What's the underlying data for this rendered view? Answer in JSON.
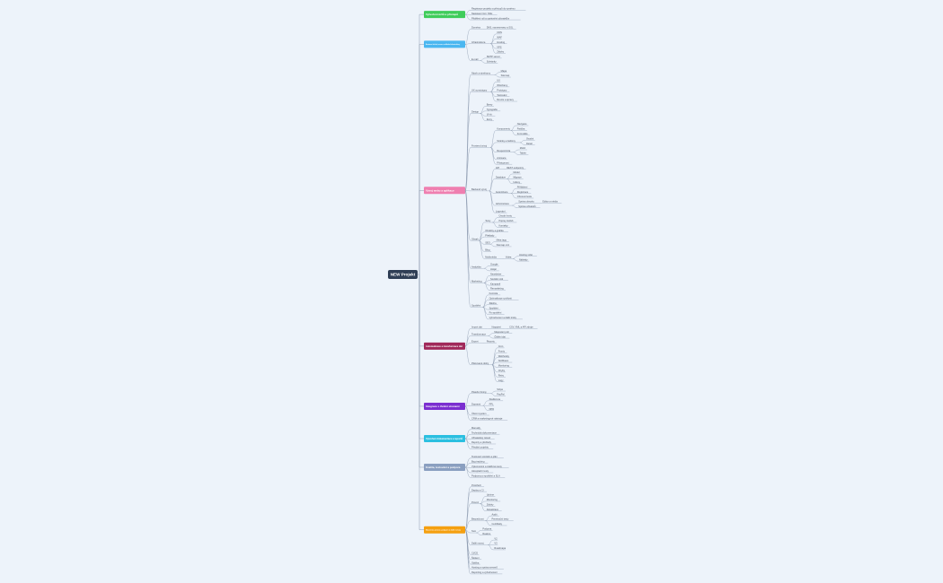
{
  "root": "NEW Projekt",
  "branches": [
    {
      "label": "Vytvoření účtů a přístupů",
      "color": "#3fcc5a",
      "children": [
        {
          "label": "Registrace projektu a přístupů do systému"
        },
        {
          "label": "Nastavení Git / SSH"
        },
        {
          "label": "Přidělení rolí a oprávnění uživatelům"
        }
      ]
    },
    {
      "label": "Nastavení služeb, serverů a základní infrastruktury",
      "color": "#4bb7f0",
      "children": [
        {
          "label": "Doména",
          "children": [
            {
              "label": "DNS, nameservery a SSL"
            }
          ]
        },
        {
          "label": "Infrastruktura",
          "children": [
            {
              "label": "CDN"
            },
            {
              "label": "WAF"
            },
            {
              "label": "Hosting"
            },
            {
              "label": "VPS"
            },
            {
              "label": "Zálohy"
            }
          ]
        },
        {
          "label": "E-mail",
          "children": [
            {
              "label": "SMTP server"
            },
            {
              "label": "Schránky"
            }
          ]
        }
      ]
    },
    {
      "label": "Vývoj webu a aplikace",
      "color": "#ef7fb0",
      "children": [
        {
          "label": "Návrh a wireframy",
          "children": [
            {
              "label": "Mapa"
            },
            {
              "label": "Sitemap"
            }
          ]
        },
        {
          "label": "UX a prototypy",
          "children": [
            {
              "label": "UX"
            },
            {
              "label": "Wireframy"
            },
            {
              "label": "Prototypy"
            },
            {
              "label": "Testování"
            },
            {
              "label": "Revize a úpravy"
            }
          ]
        },
        {
          "label": "Design",
          "children": [
            {
              "label": "Barvy"
            },
            {
              "label": "Typografie"
            },
            {
              "label": "UI kit"
            },
            {
              "label": "Ikony"
            }
          ]
        },
        {
          "label": "Frontend vývoj",
          "children": [
            {
              "label": "Komponenty",
              "children": [
                {
                  "label": "Navigace"
                },
                {
                  "label": "Patička"
                },
                {
                  "label": "Formuláře"
                }
              ]
            },
            {
              "label": "Stránky a šablony",
              "children": [
                {
                  "label": "Úvodní"
                },
                {
                  "label": "Detail"
                }
              ]
            },
            {
              "label": "Responzivita",
              "children": [
                {
                  "label": "Mobil"
                },
                {
                  "label": "Tablet"
                }
              ]
            },
            {
              "label": "Animace"
            },
            {
              "label": "Přístupnost"
            }
          ]
        },
        {
          "label": "Backend vývoj",
          "children": [
            {
              "label": "API",
              "children": [
                {
                  "label": "REST endpointy"
                }
              ]
            },
            {
              "label": "Databáze",
              "children": [
                {
                  "label": "Model"
                },
                {
                  "label": "Migrace"
                },
                {
                  "label": "Indexy"
                }
              ]
            },
            {
              "label": "Autentizace",
              "children": [
                {
                  "label": "Přihlášení"
                },
                {
                  "label": "Registrace"
                },
                {
                  "label": "Obnova hesla"
                }
              ]
            },
            {
              "label": "Administrace",
              "children": [
                {
                  "label": "Správa obsahu",
                  "children": [
                    {
                      "label": "Editor a média"
                    }
                  ]
                },
                {
                  "label": "Správa uživatelů"
                }
              ]
            },
            {
              "label": "Logování"
            }
          ]
        },
        {
          "label": "Obsah",
          "children": [
            {
              "label": "Texty",
              "children": [
                {
                  "label": "Úvodní texty"
                },
                {
                  "label": "Popisy služeb"
                },
                {
                  "label": "Kontakty"
                }
              ]
            },
            {
              "label": "Obrázky a grafika"
            },
            {
              "label": "Překlady"
            },
            {
              "label": "SEO",
              "children": [
                {
                  "label": "Meta tagy"
                },
                {
                  "label": "Sitemap.xml"
                }
              ]
            },
            {
              "label": "Blog"
            },
            {
              "label": "Multimédia",
              "children": [
                {
                  "label": "Videa",
                  "children": [
                    {
                      "label": "Hosting videí"
                    },
                    {
                      "label": "Náhledy"
                    }
                  ]
                }
              ]
            }
          ]
        },
        {
          "label": "Analytika",
          "children": [
            {
              "label": "Google"
            },
            {
              "label": "Hotjar"
            }
          ]
        },
        {
          "label": "Marketing",
          "children": [
            {
              "label": "Newsletter"
            },
            {
              "label": "Sociální sítě"
            },
            {
              "label": "Kampaně"
            },
            {
              "label": "Remarketing"
            }
          ]
        },
        {
          "label": "Spuštění",
          "children": [
            {
              "label": "Kontrola"
            },
            {
              "label": "Optimalizace rychlosti"
            },
            {
              "label": "Záloha"
            },
            {
              "label": "Spuštění"
            },
            {
              "label": "Po spuštění"
            },
            {
              "label": "Vyhodnocení a další kroky"
            }
          ]
        }
      ]
    },
    {
      "label": "Automatizace a transformace dat",
      "color": "#a0295a",
      "children": [
        {
          "label": "Import dat",
          "children": [
            {
              "label": "Napojení",
              "children": [
                {
                  "label": "CSV, XML a API zdroje"
                }
              ]
            }
          ]
        },
        {
          "label": "Transformace",
          "children": [
            {
              "label": "Mapování polí"
            },
            {
              "label": "Čištění dat"
            }
          ]
        },
        {
          "label": "Export",
          "children": [
            {
              "label": "Reporty"
            }
          ]
        },
        {
          "label": "Plánované úlohy",
          "children": [
            {
              "label": "Cron"
            },
            {
              "label": "Fronty"
            },
            {
              "label": "Webhooky"
            },
            {
              "label": "Notifikace"
            },
            {
              "label": "Monitoring"
            },
            {
              "label": "Chyby"
            },
            {
              "label": "Retry"
            },
            {
              "label": "Logy"
            }
          ]
        }
      ]
    },
    {
      "label": "Integrace s třetími stranami",
      "color": "#7b2fd0",
      "children": [
        {
          "label": "Platební brány",
          "children": [
            {
              "label": "Stripe"
            },
            {
              "label": "PayPal"
            }
          ]
        },
        {
          "label": "Dopravci",
          "children": [
            {
              "label": "Zásilkovna"
            },
            {
              "label": "PPL"
            },
            {
              "label": "DPD"
            }
          ]
        },
        {
          "label": "Účetní systém"
        },
        {
          "label": "CRM a marketingové nástroje"
        }
      ]
    },
    {
      "label": "Vytvoření dokumentace a reportů",
      "color": "#2bbfe0",
      "children": [
        {
          "label": "Manuály"
        },
        {
          "label": "Technická dokumentace"
        },
        {
          "label": "Uživatelský návod"
        },
        {
          "label": "Reporty a přehledy"
        },
        {
          "label": "Předání projektu"
        }
      ]
    },
    {
      "label": "Kvalita, testování a podpora",
      "color": "#8a9fc0",
      "children": [
        {
          "label": "Testovací scénáře a plán"
        },
        {
          "label": "Bug tracking"
        },
        {
          "label": "Výkonnostní a zátěžové testy"
        },
        {
          "label": "Akceptační testy"
        },
        {
          "label": "Podpora po spuštění a SLA"
        }
      ]
    },
    {
      "label": "Nasazení, provoz, podpora a další rozvoj",
      "color": "#f5a010",
      "children": [
        {
          "label": "Prostředí"
        },
        {
          "label": "Deploy a CI"
        },
        {
          "label": "Provoz",
          "children": [
            {
              "label": "Uptime"
            },
            {
              "label": "Monitoring"
            },
            {
              "label": "Zálohy"
            },
            {
              "label": "Aktualizace"
            }
          ]
        },
        {
          "label": "Bezpečnost",
          "children": [
            {
              "label": "Audit"
            },
            {
              "label": "Penetrační testy"
            },
            {
              "label": "Certifikáty"
            }
          ]
        },
        {
          "label": "SLA",
          "children": [
            {
              "label": "Podpora"
            },
            {
              "label": "Reakce"
            }
          ]
        },
        {
          "label": "Další rozvoj",
          "children": [
            {
              "label": "V2"
            },
            {
              "label": "V3"
            },
            {
              "label": "Roadmapa"
            }
          ]
        },
        {
          "label": "CI/CD"
        },
        {
          "label": "Školení"
        },
        {
          "label": "Údržba"
        },
        {
          "label": "Hosting a správa serverů"
        },
        {
          "label": "Reporting a vyhodnocení"
        }
      ]
    }
  ]
}
